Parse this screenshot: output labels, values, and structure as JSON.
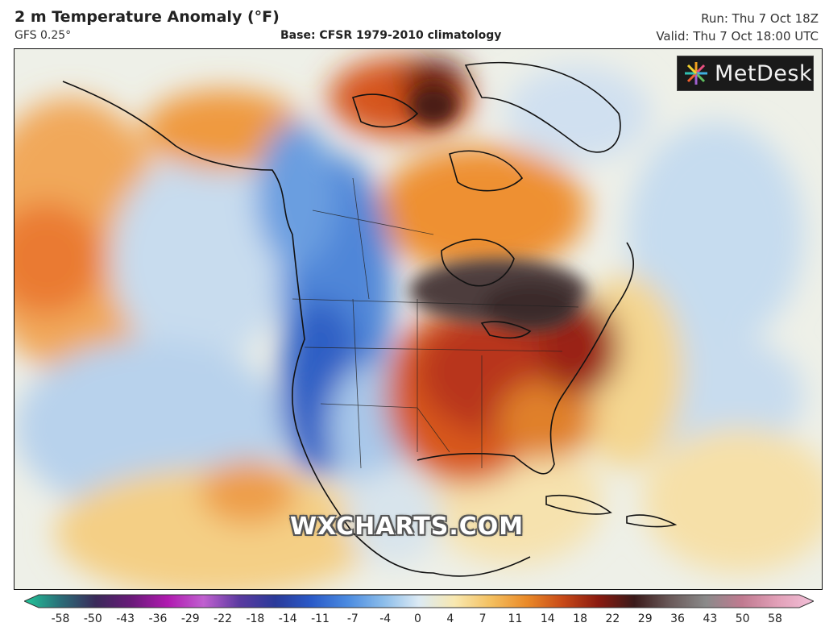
{
  "header": {
    "title": "2 m Temperature Anomaly (°F)",
    "model": "GFS 0.25°",
    "base": "Base: CFSR 1979-2010 climatology",
    "run": "Run: Thu 7 Oct 18Z",
    "valid": "Valid: Thu 7 Oct 18:00 UTC"
  },
  "logo": {
    "text": "MetDesk",
    "icon": "metdesk-burst-icon"
  },
  "watermark": "WXCHARTS.COM",
  "legend": {
    "ticks": [
      "-58",
      "-50",
      "-43",
      "-36",
      "-29",
      "-22",
      "-18",
      "-14",
      "-11",
      "-7",
      "-4",
      "0",
      "4",
      "7",
      "11",
      "14",
      "18",
      "22",
      "29",
      "36",
      "43",
      "50",
      "58"
    ],
    "colors": [
      "#20c89a",
      "#2a6e78",
      "#3a2a5a",
      "#6a1a7a",
      "#b01ab0",
      "#c060d0",
      "#5a3aa0",
      "#2a3a9a",
      "#2a5ac8",
      "#4a8ae0",
      "#8abcea",
      "#dceaf4",
      "#f8e8b0",
      "#f4c060",
      "#ea8a28",
      "#c84a18",
      "#8a1a10",
      "#3a1a1a",
      "#6a5a5a",
      "#8a8a8a",
      "#c07a90",
      "#e2a0b8",
      "#f2c0d8"
    ]
  },
  "map": {
    "region": "North America",
    "colors": {
      "ocean_warm": "#f4d9a0",
      "ocean_cool": "#cfe0ee",
      "cold_west": "#2f62c8",
      "hot_core": "#4a3a3a",
      "warm_east": "#d8581c"
    }
  }
}
